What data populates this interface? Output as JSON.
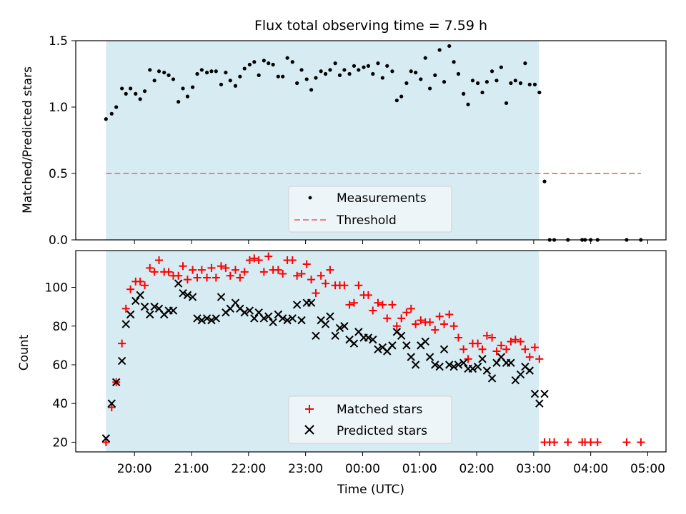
{
  "chart_data": [
    {
      "type": "scatter",
      "title": "Flux total observing time = 7.59 h",
      "xlabel": "",
      "ylabel": "Matched/Predicted stars",
      "xlim": [
        18.97,
        29.32
      ],
      "ylim": [
        0,
        1.5
      ],
      "yticks": [
        0.0,
        0.5,
        1.0,
        1.5
      ],
      "ytick_labels": [
        "0.0",
        "0.5",
        "1.0",
        "1.5"
      ],
      "xticks": [
        20,
        21,
        22,
        23,
        24,
        25,
        26,
        27,
        28,
        29
      ],
      "shaded_region": [
        19.5,
        27.09
      ],
      "legend": {
        "entries": [
          "Measurements",
          "Threshold"
        ],
        "location": "lower center"
      },
      "series": [
        {
          "name": "Measurements",
          "style": "dots",
          "color": "#000000",
          "points": [
            [
              19.5,
              0.91
            ],
            [
              19.6,
              0.95
            ],
            [
              19.68,
              1.0
            ],
            [
              19.78,
              1.14
            ],
            [
              19.85,
              1.1
            ],
            [
              19.93,
              1.14
            ],
            [
              20.02,
              1.1
            ],
            [
              20.1,
              1.06
            ],
            [
              20.18,
              1.12
            ],
            [
              20.27,
              1.28
            ],
            [
              20.35,
              1.2
            ],
            [
              20.43,
              1.27
            ],
            [
              20.52,
              1.26
            ],
            [
              20.6,
              1.24
            ],
            [
              20.68,
              1.21
            ],
            [
              20.77,
              1.04
            ],
            [
              20.85,
              1.14
            ],
            [
              20.93,
              1.08
            ],
            [
              21.02,
              1.15
            ],
            [
              21.1,
              1.25
            ],
            [
              21.18,
              1.28
            ],
            [
              21.27,
              1.26
            ],
            [
              21.35,
              1.27
            ],
            [
              21.43,
              1.27
            ],
            [
              21.52,
              1.17
            ],
            [
              21.6,
              1.26
            ],
            [
              21.68,
              1.2
            ],
            [
              21.77,
              1.16
            ],
            [
              21.85,
              1.23
            ],
            [
              21.93,
              1.29
            ],
            [
              22.02,
              1.32
            ],
            [
              22.1,
              1.34
            ],
            [
              22.18,
              1.24
            ],
            [
              22.27,
              1.35
            ],
            [
              22.35,
              1.33
            ],
            [
              22.43,
              1.32
            ],
            [
              22.52,
              1.23
            ],
            [
              22.6,
              1.23
            ],
            [
              22.68,
              1.37
            ],
            [
              22.77,
              1.34
            ],
            [
              22.85,
              1.18
            ],
            [
              22.93,
              1.28
            ],
            [
              23.02,
              1.21
            ],
            [
              23.1,
              1.13
            ],
            [
              23.18,
              1.22
            ],
            [
              23.27,
              1.27
            ],
            [
              23.35,
              1.25
            ],
            [
              23.43,
              1.28
            ],
            [
              23.52,
              1.33
            ],
            [
              23.6,
              1.24
            ],
            [
              23.68,
              1.28
            ],
            [
              23.77,
              1.25
            ],
            [
              23.85,
              1.31
            ],
            [
              23.93,
              1.28
            ],
            [
              24.02,
              1.3
            ],
            [
              24.1,
              1.31
            ],
            [
              24.18,
              1.25
            ],
            [
              24.27,
              1.33
            ],
            [
              24.35,
              1.22
            ],
            [
              24.43,
              1.31
            ],
            [
              24.52,
              1.27
            ],
            [
              24.6,
              1.05
            ],
            [
              24.68,
              1.08
            ],
            [
              24.77,
              1.18
            ],
            [
              24.85,
              1.27
            ],
            [
              24.93,
              1.26
            ],
            [
              25.02,
              1.21
            ],
            [
              25.1,
              1.37
            ],
            [
              25.18,
              1.14
            ],
            [
              25.27,
              1.24
            ],
            [
              25.35,
              1.43
            ],
            [
              25.43,
              1.19
            ],
            [
              25.52,
              1.46
            ],
            [
              25.6,
              1.34
            ],
            [
              25.68,
              1.25
            ],
            [
              25.77,
              1.1
            ],
            [
              25.85,
              1.02
            ],
            [
              25.93,
              1.2
            ],
            [
              26.02,
              1.18
            ],
            [
              26.1,
              1.11
            ],
            [
              26.18,
              1.19
            ],
            [
              26.27,
              1.27
            ],
            [
              26.35,
              1.2
            ],
            [
              26.43,
              1.3
            ],
            [
              26.52,
              1.03
            ],
            [
              26.6,
              1.18
            ],
            [
              26.68,
              1.2
            ],
            [
              26.77,
              1.18
            ],
            [
              26.85,
              1.33
            ],
            [
              26.93,
              1.17
            ],
            [
              27.02,
              1.17
            ],
            [
              27.1,
              1.11
            ],
            [
              27.19,
              0.44
            ],
            [
              27.28,
              0.0
            ],
            [
              27.36,
              0.0
            ],
            [
              27.6,
              0.0
            ],
            [
              27.85,
              0.0
            ],
            [
              27.9,
              0.0
            ],
            [
              28.0,
              0.0
            ],
            [
              28.12,
              0.0
            ],
            [
              28.63,
              0.0
            ],
            [
              28.88,
              0.0
            ]
          ]
        },
        {
          "name": "Threshold",
          "style": "dashed-line",
          "color": "#f08080",
          "points": [
            [
              19.5,
              0.5
            ],
            [
              28.88,
              0.5
            ]
          ]
        }
      ]
    },
    {
      "type": "scatter",
      "title": "",
      "xlabel": "Time (UTC)",
      "ylabel": "Count",
      "xlim": [
        18.97,
        29.32
      ],
      "ylim": [
        15,
        119
      ],
      "yticks": [
        20,
        40,
        60,
        80,
        100
      ],
      "ytick_labels": [
        "20",
        "40",
        "60",
        "80",
        "100"
      ],
      "xticks": [
        20,
        21,
        22,
        23,
        24,
        25,
        26,
        27,
        28,
        29
      ],
      "xtick_labels": [
        "20:00",
        "21:00",
        "22:00",
        "23:00",
        "00:00",
        "01:00",
        "02:00",
        "03:00",
        "04:00",
        "05:00"
      ],
      "shaded_region": [
        19.5,
        27.09
      ],
      "legend": {
        "entries": [
          "Matched stars",
          "Predicted stars"
        ],
        "location": "lower center"
      },
      "series": [
        {
          "name": "Matched stars",
          "marker": "plus",
          "color": "#ff0000",
          "x": [
            19.5,
            19.6,
            19.68,
            19.78,
            19.85,
            19.93,
            20.02,
            20.1,
            20.18,
            20.27,
            20.35,
            20.43,
            20.52,
            20.6,
            20.68,
            20.77,
            20.85,
            20.93,
            21.02,
            21.1,
            21.18,
            21.27,
            21.35,
            21.43,
            21.52,
            21.6,
            21.68,
            21.77,
            21.85,
            21.93,
            22.02,
            22.1,
            22.18,
            22.27,
            22.35,
            22.43,
            22.52,
            22.6,
            22.68,
            22.77,
            22.85,
            22.93,
            23.02,
            23.1,
            23.18,
            23.27,
            23.35,
            23.43,
            23.52,
            23.6,
            23.68,
            23.77,
            23.85,
            23.93,
            24.02,
            24.1,
            24.18,
            24.27,
            24.35,
            24.43,
            24.52,
            24.6,
            24.68,
            24.77,
            24.85,
            24.93,
            25.02,
            25.1,
            25.18,
            25.27,
            25.35,
            25.43,
            25.52,
            25.6,
            25.68,
            25.77,
            25.85,
            25.93,
            26.02,
            26.1,
            26.18,
            26.27,
            26.35,
            26.43,
            26.52,
            26.6,
            26.68,
            26.77,
            26.85,
            26.93,
            27.02,
            27.1,
            27.19,
            27.28,
            27.36,
            27.6,
            27.85,
            27.9,
            28.0,
            28.12,
            28.63,
            28.88
          ],
          "y": [
            20,
            38,
            51,
            71,
            89,
            99,
            103,
            103,
            101,
            110,
            108,
            114,
            108,
            108,
            106,
            106,
            111,
            104,
            109,
            105,
            109,
            105,
            110,
            105,
            111,
            110,
            106,
            109,
            105,
            108,
            114,
            115,
            114,
            108,
            116,
            109,
            109,
            107,
            114,
            114,
            106,
            107,
            112,
            104,
            97,
            106,
            102,
            109,
            101,
            101,
            101,
            91,
            92,
            101,
            96,
            96,
            88,
            92,
            91,
            84,
            91,
            80,
            84,
            87,
            89,
            81,
            83,
            82,
            82,
            78,
            85,
            81,
            86,
            80,
            74,
            68,
            63,
            71,
            71,
            68,
            75,
            74,
            67,
            70,
            68,
            72,
            73,
            72,
            68,
            64,
            69,
            63,
            20,
            20,
            20,
            20,
            20,
            20,
            20,
            20,
            20,
            20
          ]
        },
        {
          "name": "Predicted stars",
          "marker": "x",
          "color": "#000000",
          "x": [
            19.5,
            19.6,
            19.68,
            19.78,
            19.85,
            19.93,
            20.02,
            20.1,
            20.18,
            20.27,
            20.35,
            20.43,
            20.52,
            20.6,
            20.68,
            20.77,
            20.85,
            20.93,
            21.02,
            21.1,
            21.18,
            21.27,
            21.35,
            21.43,
            21.52,
            21.6,
            21.68,
            21.77,
            21.85,
            21.93,
            22.02,
            22.1,
            22.18,
            22.27,
            22.35,
            22.43,
            22.52,
            22.6,
            22.68,
            22.77,
            22.85,
            22.93,
            23.02,
            23.1,
            23.18,
            23.27,
            23.35,
            23.43,
            23.52,
            23.6,
            23.68,
            23.77,
            23.85,
            23.93,
            24.02,
            24.1,
            24.18,
            24.27,
            24.35,
            24.43,
            24.52,
            24.6,
            24.68,
            24.77,
            24.85,
            24.93,
            25.02,
            25.1,
            25.18,
            25.27,
            25.35,
            25.43,
            25.52,
            25.6,
            25.68,
            25.77,
            25.85,
            25.93,
            26.02,
            26.1,
            26.18,
            26.27,
            26.35,
            26.43,
            26.52,
            26.6,
            26.68,
            26.77,
            26.85,
            26.93,
            27.02,
            27.1,
            27.19
          ],
          "y": [
            22,
            40,
            51,
            62,
            81,
            86,
            93,
            96,
            90,
            86,
            90,
            89,
            86,
            88,
            88,
            102,
            97,
            96,
            95,
            84,
            83,
            84,
            83,
            84,
            95,
            87,
            89,
            92,
            89,
            87,
            88,
            84,
            87,
            84,
            85,
            82,
            86,
            84,
            83,
            84,
            91,
            83,
            92,
            92,
            75,
            83,
            81,
            85,
            75,
            79,
            80,
            73,
            71,
            77,
            74,
            74,
            73,
            68,
            69,
            67,
            70,
            77,
            75,
            70,
            64,
            60,
            70,
            72,
            64,
            60,
            59,
            68,
            60,
            59,
            60,
            61,
            58,
            58,
            59,
            63,
            57,
            53,
            61,
            64,
            61,
            61,
            52,
            55,
            59,
            57,
            45,
            40,
            45
          ]
        }
      ]
    }
  ]
}
